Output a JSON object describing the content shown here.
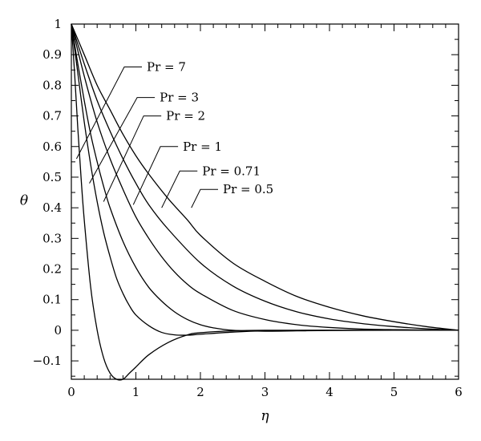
{
  "chart_data": {
    "type": "line",
    "title": "",
    "xlabel": "η",
    "ylabel": "θ",
    "xlim": [
      0,
      6
    ],
    "ylim": [
      -0.16,
      1.0
    ],
    "x_ticks": [
      0,
      1,
      2,
      3,
      4,
      5,
      6
    ],
    "y_ticks": [
      -0.1,
      0,
      0.1,
      0.2,
      0.3,
      0.4,
      0.5,
      0.6,
      0.7,
      0.8,
      0.9,
      1
    ],
    "x_tick_labels": [
      "0",
      "1",
      "2",
      "3",
      "4",
      "5",
      "6"
    ],
    "y_tick_labels": [
      "−0.1",
      "0",
      "0.1",
      "0.2",
      "0.3",
      "0.4",
      "0.5",
      "0.6",
      "0.7",
      "0.8",
      "0.9",
      "1"
    ],
    "grid": false,
    "line_color": "#000000",
    "series": [
      {
        "name": "Pr = 7",
        "x": [
          0,
          0.05,
          0.1,
          0.15,
          0.2,
          0.3,
          0.4,
          0.5,
          0.6,
          0.7,
          0.8,
          0.9,
          1.0,
          1.2,
          1.5,
          1.8,
          2.0,
          2.5,
          3.0,
          4.0,
          5.0,
          6.0
        ],
        "y": [
          1.0,
          0.84,
          0.66,
          0.5,
          0.36,
          0.14,
          0.0,
          -0.09,
          -0.14,
          -0.16,
          -0.16,
          -0.14,
          -0.12,
          -0.08,
          -0.04,
          -0.015,
          -0.008,
          -0.002,
          0,
          0,
          0,
          0
        ]
      },
      {
        "name": "Pr = 3",
        "x": [
          0,
          0.05,
          0.1,
          0.2,
          0.3,
          0.4,
          0.5,
          0.6,
          0.7,
          0.8,
          0.9,
          1.0,
          1.2,
          1.4,
          1.6,
          1.8,
          2.0,
          2.5,
          3.0,
          4.0,
          5.0,
          6.0
        ],
        "y": [
          1.0,
          0.92,
          0.84,
          0.68,
          0.54,
          0.42,
          0.32,
          0.24,
          0.17,
          0.12,
          0.08,
          0.05,
          0.015,
          -0.007,
          -0.015,
          -0.016,
          -0.013,
          -0.006,
          -0.002,
          0,
          0,
          0
        ]
      },
      {
        "name": "Pr = 2",
        "x": [
          0,
          0.1,
          0.2,
          0.3,
          0.4,
          0.5,
          0.6,
          0.8,
          1.0,
          1.2,
          1.4,
          1.6,
          1.8,
          2.0,
          2.2,
          2.5,
          3.0,
          3.5,
          4.0,
          5.0,
          6.0
        ],
        "y": [
          1.0,
          0.87,
          0.75,
          0.64,
          0.55,
          0.47,
          0.4,
          0.29,
          0.205,
          0.14,
          0.095,
          0.06,
          0.035,
          0.018,
          0.008,
          0.0,
          -0.003,
          -0.002,
          -0.001,
          0,
          0
        ]
      },
      {
        "name": "Pr = 1",
        "x": [
          0,
          0.2,
          0.4,
          0.6,
          0.8,
          1.0,
          1.2,
          1.4,
          1.6,
          1.8,
          2.0,
          2.5,
          3.0,
          3.5,
          4.0,
          4.5,
          5.0,
          5.5,
          6.0
        ],
        "y": [
          1.0,
          0.83,
          0.68,
          0.56,
          0.46,
          0.37,
          0.3,
          0.24,
          0.19,
          0.15,
          0.12,
          0.065,
          0.035,
          0.018,
          0.009,
          0.004,
          0.002,
          0.001,
          0
        ]
      },
      {
        "name": "Pr = 0.71",
        "x": [
          0,
          0.2,
          0.4,
          0.6,
          0.8,
          1.0,
          1.2,
          1.5,
          2.0,
          2.5,
          3.0,
          3.5,
          4.0,
          4.5,
          5.0,
          5.5,
          6.0
        ],
        "y": [
          1.0,
          0.87,
          0.75,
          0.65,
          0.56,
          0.48,
          0.41,
          0.33,
          0.22,
          0.145,
          0.095,
          0.06,
          0.037,
          0.022,
          0.012,
          0.005,
          0
        ]
      },
      {
        "name": "Pr = 0.5",
        "x": [
          0,
          0.2,
          0.4,
          0.6,
          0.8,
          1.0,
          1.2,
          1.5,
          1.8,
          2.0,
          2.5,
          3.0,
          3.5,
          4.0,
          4.5,
          5.0,
          5.5,
          6.0
        ],
        "y": [
          1.0,
          0.9,
          0.8,
          0.72,
          0.64,
          0.57,
          0.51,
          0.43,
          0.36,
          0.31,
          0.22,
          0.16,
          0.11,
          0.075,
          0.048,
          0.028,
          0.012,
          0
        ]
      }
    ],
    "annotations": [
      {
        "text": "Pr = 7",
        "pointer": {
          "x": 0.08,
          "y": 0.56
        },
        "elbow": {
          "x": 0.82,
          "y": 0.86
        }
      },
      {
        "text": "Pr = 3",
        "pointer": {
          "x": 0.28,
          "y": 0.48
        },
        "elbow": {
          "x": 1.02,
          "y": 0.76
        }
      },
      {
        "text": "Pr = 2",
        "pointer": {
          "x": 0.5,
          "y": 0.42
        },
        "elbow": {
          "x": 1.12,
          "y": 0.7
        }
      },
      {
        "text": "Pr = 1",
        "pointer": {
          "x": 0.96,
          "y": 0.41
        },
        "elbow": {
          "x": 1.38,
          "y": 0.6
        }
      },
      {
        "text": "Pr = 0.71",
        "pointer": {
          "x": 1.4,
          "y": 0.4
        },
        "elbow": {
          "x": 1.68,
          "y": 0.52
        }
      },
      {
        "text": "Pr = 0.5",
        "pointer": {
          "x": 1.86,
          "y": 0.4
        },
        "elbow": {
          "x": 2.0,
          "y": 0.46
        }
      }
    ]
  }
}
